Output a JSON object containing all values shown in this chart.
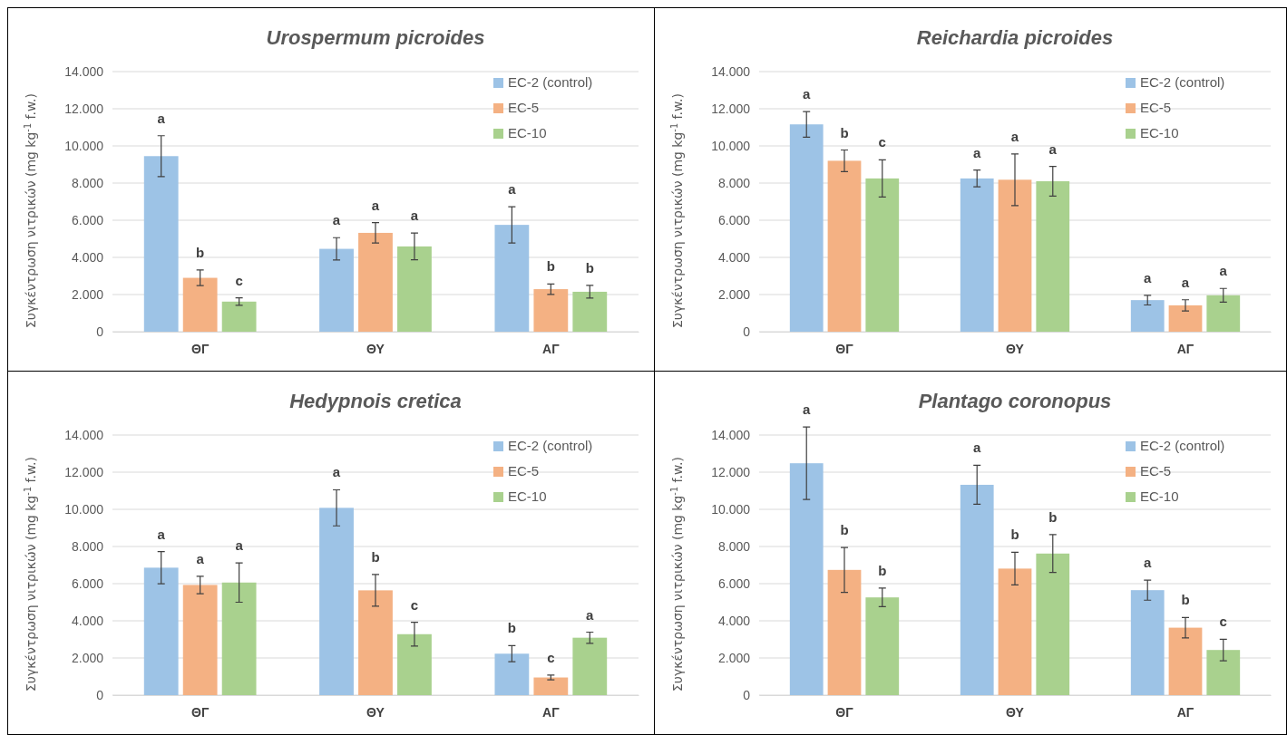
{
  "chart_data": [
    {
      "type": "bar",
      "title": "Urospermum picroides",
      "ylabel": "Συγκέντρωση νιτρικών (mg kg$^{-1}$ f.w.)",
      "categories": [
        "ΘΓ",
        "ΘΥ",
        "ΑΓ"
      ],
      "series": [
        {
          "name": "EC-2 (control)",
          "color": "#9dc3e6",
          "values": [
            9450,
            4460,
            5750
          ],
          "errors": [
            1100,
            600,
            980
          ]
        },
        {
          "name": "EC-5",
          "color": "#f4b183",
          "values": [
            2900,
            5320,
            2290
          ],
          "errors": [
            420,
            550,
            280
          ]
        },
        {
          "name": "EC-10",
          "color": "#a9d18e",
          "values": [
            1620,
            4590,
            2150
          ],
          "errors": [
            200,
            720,
            340
          ]
        }
      ],
      "ylim": [
        0,
        14000
      ],
      "yticks": [
        {
          "value": 0,
          "label": "0"
        },
        {
          "value": 2000,
          "label": "2.000"
        },
        {
          "value": 4000,
          "label": "4.000"
        },
        {
          "value": 6000,
          "label": "6.000"
        },
        {
          "value": 8000,
          "label": "8.000"
        },
        {
          "value": 10000,
          "label": "10.000"
        },
        {
          "value": 12000,
          "label": "12.000"
        },
        {
          "value": 14000,
          "label": "14.000"
        }
      ],
      "grid": "y",
      "legend": "top right",
      "annotations": [
        "a",
        "b",
        "c",
        "a",
        "a",
        "a",
        "a",
        "b",
        "b"
      ]
    },
    {
      "type": "bar",
      "title": "Reichardia picroides",
      "ylabel": "Συγκέντρωση νιτρικών (mg kg$^{-1}$ f.w.)",
      "categories": [
        "ΘΓ",
        "ΘΥ",
        "ΑΓ"
      ],
      "series": [
        {
          "name": "EC-2 (control)",
          "color": "#9dc3e6",
          "values": [
            11160,
            8250,
            1700
          ],
          "errors": [
            690,
            450,
            260
          ]
        },
        {
          "name": "EC-5",
          "color": "#f4b183",
          "values": [
            9200,
            8180,
            1420
          ],
          "errors": [
            580,
            1390,
            300
          ]
        },
        {
          "name": "EC-10",
          "color": "#a9d18e",
          "values": [
            8250,
            8100,
            1960
          ],
          "errors": [
            1000,
            800,
            370
          ]
        }
      ],
      "ylim": [
        0,
        14000
      ],
      "yticks": [
        {
          "value": 0,
          "label": "0"
        },
        {
          "value": 2000,
          "label": "2.000"
        },
        {
          "value": 4000,
          "label": "4.000"
        },
        {
          "value": 6000,
          "label": "6.000"
        },
        {
          "value": 8000,
          "label": "8.000"
        },
        {
          "value": 10000,
          "label": "10.000"
        },
        {
          "value": 12000,
          "label": "12.000"
        },
        {
          "value": 14000,
          "label": "14.000"
        }
      ],
      "grid": "y",
      "legend": "top right",
      "annotations": [
        "a",
        "b",
        "c",
        "a",
        "a",
        "a",
        "a",
        "a",
        "a"
      ]
    },
    {
      "type": "bar",
      "title": "Hedypnois cretica",
      "ylabel": "Συγκέντρωση νιτρικών (mg kg$^{-1}$ f.w.)",
      "categories": [
        "ΘΓ",
        "ΘΥ",
        "ΑΓ"
      ],
      "series": [
        {
          "name": "EC-2 (control)",
          "color": "#9dc3e6",
          "values": [
            6860,
            10080,
            2230
          ],
          "errors": [
            870,
            970,
            430
          ]
        },
        {
          "name": "EC-5",
          "color": "#f4b183",
          "values": [
            5930,
            5640,
            950
          ],
          "errors": [
            470,
            850,
            130
          ]
        },
        {
          "name": "EC-10",
          "color": "#a9d18e",
          "values": [
            6060,
            3280,
            3090
          ],
          "errors": [
            1060,
            640,
            300
          ]
        }
      ],
      "ylim": [
        0,
        14000
      ],
      "yticks": [
        {
          "value": 0,
          "label": "0"
        },
        {
          "value": 2000,
          "label": "2.000"
        },
        {
          "value": 4000,
          "label": "4.000"
        },
        {
          "value": 6000,
          "label": "6.000"
        },
        {
          "value": 8000,
          "label": "8.000"
        },
        {
          "value": 10000,
          "label": "10.000"
        },
        {
          "value": 12000,
          "label": "12.000"
        },
        {
          "value": 14000,
          "label": "14.000"
        }
      ],
      "grid": "y",
      "legend": "top right",
      "annotations": [
        "a",
        "a",
        "a",
        "a",
        "b",
        "c",
        "b",
        "c",
        "a"
      ]
    },
    {
      "type": "bar",
      "title": "Plantago coronopus",
      "ylabel": "Συγκέντρωση νιτρικών (mg kg$^{-1}$ f.w.)",
      "categories": [
        "ΘΓ",
        "ΘΥ",
        "ΑΓ"
      ],
      "series": [
        {
          "name": "EC-2 (control)",
          "color": "#9dc3e6",
          "values": [
            12480,
            11320,
            5650
          ],
          "errors": [
            1950,
            1050,
            540
          ]
        },
        {
          "name": "EC-5",
          "color": "#f4b183",
          "values": [
            6740,
            6810,
            3630
          ],
          "errors": [
            1210,
            880,
            550
          ]
        },
        {
          "name": "EC-10",
          "color": "#a9d18e",
          "values": [
            5260,
            7620,
            2430
          ],
          "errors": [
            500,
            1020,
            580
          ]
        }
      ],
      "ylim": [
        0,
        14000
      ],
      "yticks": [
        {
          "value": 0,
          "label": "0"
        },
        {
          "value": 2000,
          "label": "2.000"
        },
        {
          "value": 4000,
          "label": "4.000"
        },
        {
          "value": 6000,
          "label": "6.000"
        },
        {
          "value": 8000,
          "label": "8.000"
        },
        {
          "value": 10000,
          "label": "10.000"
        },
        {
          "value": 12000,
          "label": "12.000"
        },
        {
          "value": 14000,
          "label": "14.000"
        }
      ],
      "grid": "y",
      "legend": "top right",
      "annotations": [
        "a",
        "b",
        "b",
        "a",
        "b",
        "b",
        "a",
        "b",
        "c"
      ]
    }
  ]
}
